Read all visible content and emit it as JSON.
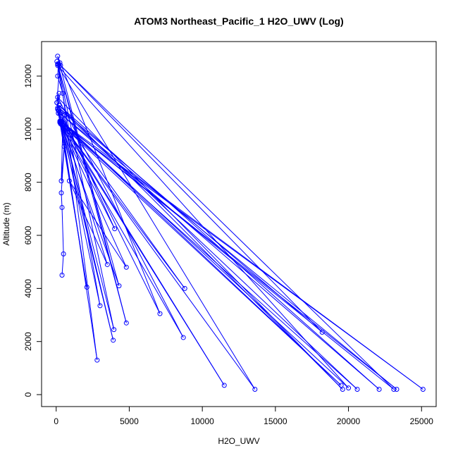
{
  "chart_data": {
    "type": "line",
    "title": "ATOM3 Northeast_Pacific_1 H2O_UWV (Log)",
    "xlabel": "H2O_UWV",
    "ylabel": "Altitude (m)",
    "xlim": [
      -1000,
      26000
    ],
    "ylim": [
      -450,
      13300
    ],
    "xticks": [
      0,
      5000,
      10000,
      15000,
      20000,
      25000
    ],
    "yticks": [
      0,
      2000,
      4000,
      6000,
      8000,
      10000,
      12000
    ],
    "grid": false,
    "marker": "open-circle",
    "color": "#0000ff",
    "series": [
      {
        "x": [
          400,
          500,
          400,
          350,
          550,
          350,
          450,
          350,
          600,
          150,
          100,
          200,
          300,
          150,
          350,
          100,
          200,
          50,
          250,
          150,
          100,
          450,
          2800,
          350,
          20000,
          100,
          13600,
          300,
          11500,
          500,
          3500,
          900,
          4800,
          250,
          8800,
          150,
          2100,
          300,
          4300,
          50,
          3000,
          200,
          7100,
          100,
          4800,
          100,
          3950,
          400,
          3900,
          300,
          8700,
          100,
          19600,
          200,
          22100,
          250,
          23300,
          300,
          25100,
          250,
          20600,
          200,
          18200,
          300,
          23100,
          300,
          19500,
          400,
          4000,
          50
        ],
        "y": [
          4500,
          5300,
          7050,
          7600,
          9350,
          8050,
          10150,
          10300,
          10550,
          10700,
          10750,
          10900,
          10650,
          10600,
          10250,
          10800,
          11350,
          11000,
          12500,
          12450,
          12000,
          11350,
          1300,
          10300,
          250,
          12400,
          200,
          10250,
          350,
          10150,
          4900,
          8050,
          4800,
          10300,
          4000,
          10600,
          4050,
          10250,
          4100,
          12550,
          3350,
          10700,
          3050,
          12750,
          2700,
          12450,
          2450,
          10250,
          2050,
          10200,
          2150,
          11200,
          200,
          10900,
          200,
          10600,
          200,
          10300,
          200,
          10250,
          200,
          10800,
          2350,
          12400,
          200,
          10300,
          350,
          10150,
          6250,
          11000
        ]
      }
    ]
  }
}
